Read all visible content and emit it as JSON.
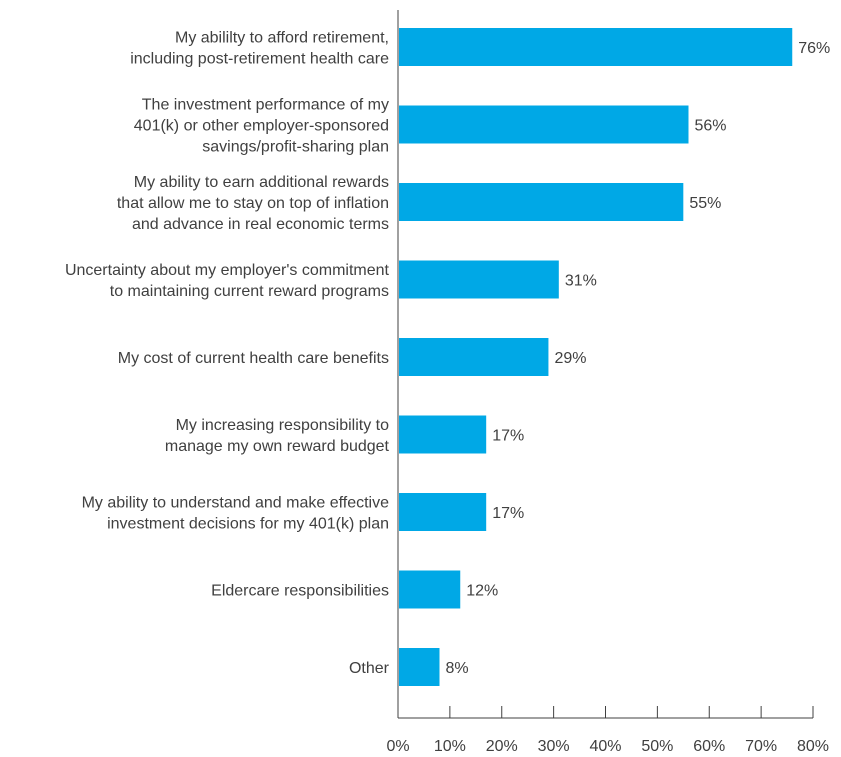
{
  "chart_data": {
    "type": "bar",
    "orientation": "horizontal",
    "categories": [
      [
        "My abililty to afford retirement,",
        "including post-retirement health care"
      ],
      [
        "The investment performance of my",
        "401(k) or other employer-sponsored",
        "savings/profit-sharing plan"
      ],
      [
        "My ability to earn additional rewards",
        "that allow me to stay on top of inflation",
        "and advance in real economic terms"
      ],
      [
        "Uncertainty about my employer's commitment",
        "to maintaining current reward programs"
      ],
      [
        "My cost of current health care benefits"
      ],
      [
        "My increasing responsibility to",
        "manage my own reward budget"
      ],
      [
        "My ability to understand and make effective",
        "investment decisions for my 401(k) plan"
      ],
      [
        "Eldercare responsibilities"
      ],
      [
        "Other"
      ]
    ],
    "values": [
      76,
      56,
      55,
      31,
      29,
      17,
      17,
      12,
      8
    ],
    "value_labels": [
      "76%",
      "56%",
      "55%",
      "31%",
      "29%",
      "17%",
      "17%",
      "12%",
      "8%"
    ],
    "xlim": [
      0,
      80
    ],
    "x_ticks": [
      0,
      10,
      20,
      30,
      40,
      50,
      60,
      70,
      80
    ],
    "x_tick_labels": [
      "0%",
      "10%",
      "20%",
      "30%",
      "40%",
      "50%",
      "60%",
      "70%",
      "80%"
    ],
    "grid": false,
    "colors": {
      "bar": "#00a8e6",
      "axis": "#404040",
      "text": "#404040"
    }
  }
}
